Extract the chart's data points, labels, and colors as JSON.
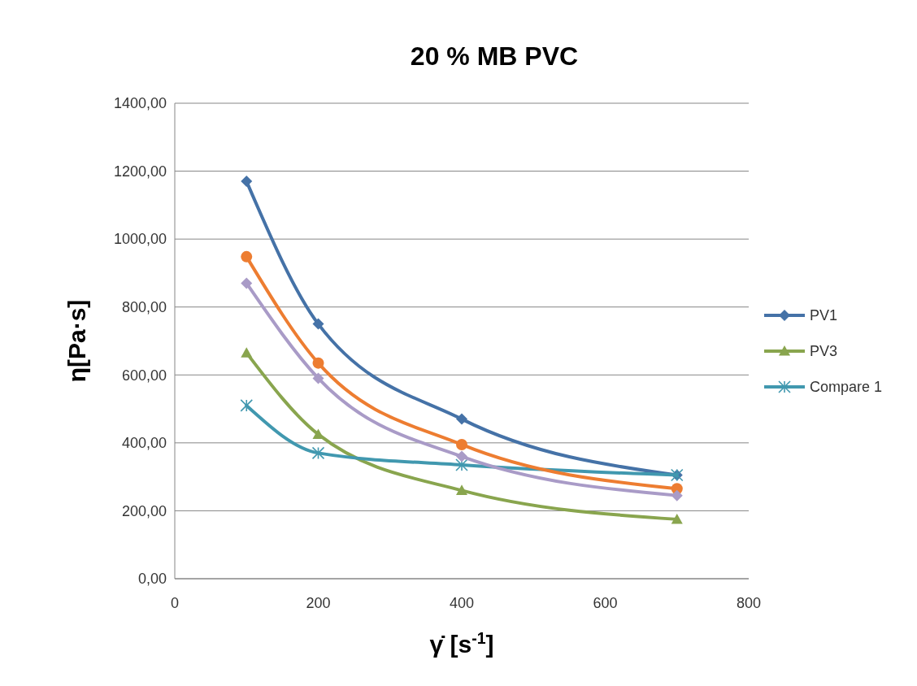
{
  "chart_data": {
    "type": "line",
    "title": "20 % MB PVC",
    "xlabel": "γ̇ [s$^{-1}$]",
    "ylabel": "η[Pa·s]",
    "x": [
      100,
      200,
      400,
      700
    ],
    "xlim": [
      0,
      800
    ],
    "xticks": [
      0,
      200,
      400,
      600,
      800
    ],
    "ylim": [
      0,
      1400
    ],
    "yticks": [
      {
        "value": 0,
        "label": "0,00"
      },
      {
        "value": 200,
        "label": "200,00"
      },
      {
        "value": 400,
        "label": "400,00"
      },
      {
        "value": 600,
        "label": "600,00"
      },
      {
        "value": 800,
        "label": "800,00"
      },
      {
        "value": 1000,
        "label": "1000,00"
      },
      {
        "value": 1200,
        "label": "1200,00"
      },
      {
        "value": 1400,
        "label": "1400,00"
      }
    ],
    "grid": "y",
    "legend": "right",
    "series": [
      {
        "name": "PV1",
        "color": "#4572a7",
        "marker": "diamond",
        "values": [
          1170,
          750,
          470,
          305
        ]
      },
      {
        "name": "PV3",
        "color": "#89a54e",
        "marker": "triangle",
        "values": [
          665,
          425,
          260,
          175
        ]
      },
      {
        "name": "Compare 1",
        "color": "#4198af",
        "marker": "cross",
        "values": [
          510,
          370,
          335,
          305
        ]
      },
      {
        "color": "#ed7d31",
        "marker": "circle",
        "values": [
          948,
          635,
          395,
          265
        ]
      },
      {
        "color": "#a99bc7",
        "marker": "diamond",
        "values": [
          870,
          590,
          360,
          245
        ]
      }
    ]
  }
}
